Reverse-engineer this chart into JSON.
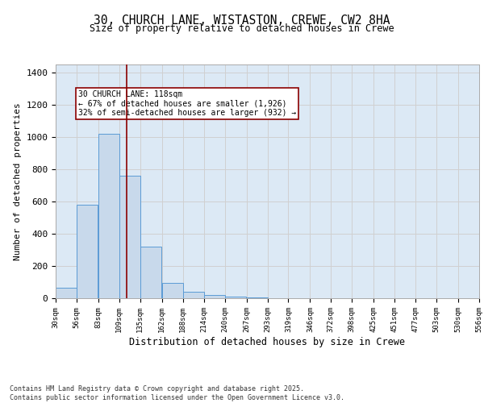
{
  "title_line1": "30, CHURCH LANE, WISTASTON, CREWE, CW2 8HA",
  "title_line2": "Size of property relative to detached houses in Crewe",
  "xlabel": "Distribution of detached houses by size in Crewe",
  "ylabel": "Number of detached properties",
  "bar_bins": [
    30,
    56,
    83,
    109,
    135,
    162,
    188,
    214,
    240,
    267,
    293,
    319,
    346,
    372,
    398,
    425,
    451,
    477,
    503,
    530,
    556
  ],
  "bar_values": [
    65,
    580,
    1020,
    760,
    320,
    95,
    40,
    18,
    8,
    4,
    2,
    1,
    1,
    0,
    0,
    0,
    0,
    0,
    0,
    0
  ],
  "bar_color": "#c8d9eb",
  "bar_edge_color": "#5b9bd5",
  "vline_x": 118,
  "vline_color": "#8b0000",
  "annotation_text": "30 CHURCH LANE: 118sqm\n← 67% of detached houses are smaller (1,926)\n32% of semi-detached houses are larger (932) →",
  "annotation_box_color": "white",
  "annotation_box_edge_color": "#8b0000",
  "ylim": [
    0,
    1450
  ],
  "yticks": [
    0,
    200,
    400,
    600,
    800,
    1000,
    1200,
    1400
  ],
  "grid_color": "#d0d0d0",
  "background_color": "#dce9f5",
  "footer_text": "Contains HM Land Registry data © Crown copyright and database right 2025.\nContains public sector information licensed under the Open Government Licence v3.0.",
  "tick_labels": [
    "30sqm",
    "56sqm",
    "83sqm",
    "109sqm",
    "135sqm",
    "162sqm",
    "188sqm",
    "214sqm",
    "240sqm",
    "267sqm",
    "293sqm",
    "319sqm",
    "346sqm",
    "372sqm",
    "398sqm",
    "425sqm",
    "451sqm",
    "477sqm",
    "503sqm",
    "530sqm",
    "556sqm"
  ]
}
